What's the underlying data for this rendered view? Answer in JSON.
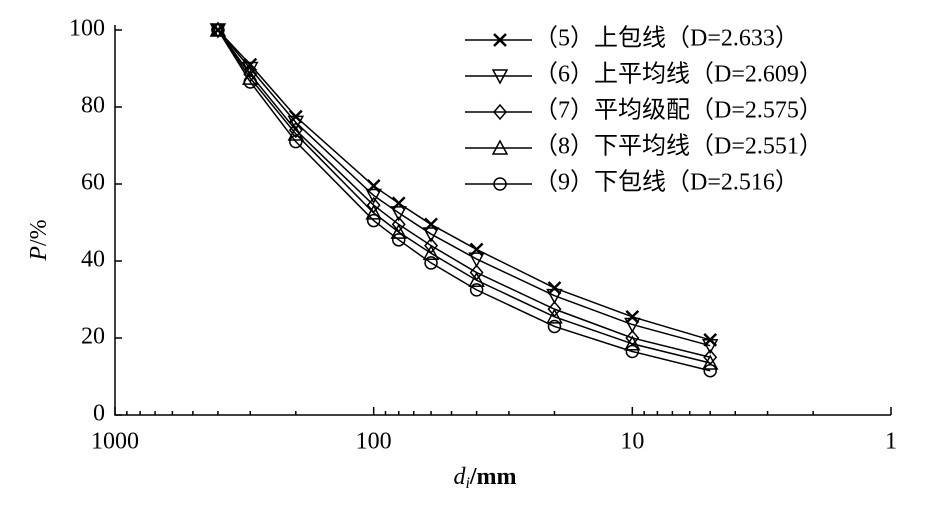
{
  "chart_data": {
    "type": "line",
    "xlabel": {
      "symbol": "d",
      "subscript": "i",
      "unit": "/mm"
    },
    "ylabel": {
      "symbol": "P",
      "unit": "/%"
    },
    "x": [
      400,
      300,
      200,
      100,
      80,
      60,
      40,
      20,
      10,
      5
    ],
    "series": [
      {
        "name": "（5）上包线（D=2.633）",
        "color": "#000000",
        "marker": "x",
        "values": [
          100,
          91,
          77.5,
          59.5,
          55,
          49.5,
          43,
          33,
          25.5,
          19.5
        ]
      },
      {
        "name": "（6）上平均线（D=2.609）",
        "color": "#000000",
        "marker": "triangle-down",
        "values": [
          100,
          90,
          76,
          57,
          52.5,
          47,
          40.5,
          31,
          23.5,
          18
        ]
      },
      {
        "name": "（7）平均级配（D=2.575）",
        "color": "#000000",
        "marker": "diamond",
        "values": [
          100,
          88.5,
          74,
          54.5,
          49.5,
          44,
          37,
          27.5,
          20,
          15
        ]
      },
      {
        "name": "（8）下平均线（D=2.551）",
        "color": "#000000",
        "marker": "triangle-up",
        "values": [
          100,
          87.5,
          73,
          52.5,
          47.5,
          42,
          35,
          25.5,
          18.5,
          13.5
        ]
      },
      {
        "name": "（9）下包线（D=2.516）",
        "color": "#000000",
        "marker": "circle",
        "values": [
          100,
          86.5,
          71,
          50.5,
          45.5,
          39.5,
          32.5,
          23,
          16.5,
          11.5
        ]
      }
    ],
    "xscale": "log",
    "xlim": [
      1000,
      1
    ],
    "xticks": [
      1000,
      100,
      10,
      1
    ],
    "xminorticks": [
      900,
      800,
      700,
      600,
      500,
      400,
      300,
      200,
      90,
      80,
      70,
      60,
      50,
      40,
      30,
      20,
      9,
      8,
      7,
      6,
      5,
      4,
      3,
      2
    ],
    "ylim": [
      0,
      100
    ],
    "yticks": [
      0,
      20,
      40,
      60,
      80,
      100
    ],
    "grid": false,
    "legend": "top-right"
  }
}
